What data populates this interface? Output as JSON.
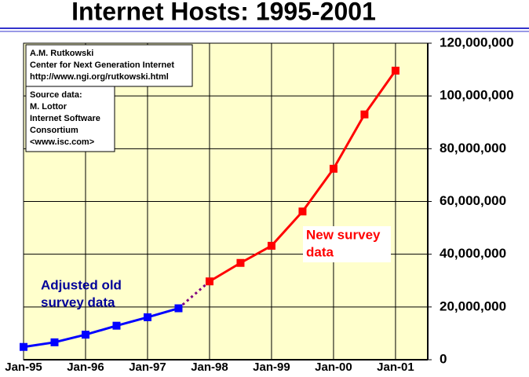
{
  "chart_data": {
    "type": "line",
    "title": "Internet Hosts: 1995-2001",
    "boxes": [
      [
        "A.M. Rutkowski",
        "Center for Next Generation Internet",
        "http://www.ngi.org/rutkowski.html"
      ],
      [
        "Source data:",
        "M. Lottor",
        "Internet Software",
        "Consortium",
        "<www.isc.com>"
      ]
    ],
    "annotations": [
      {
        "lines": [
          "Adjusted old",
          "survey data"
        ],
        "color": "#000099"
      },
      {
        "lines": [
          "New survey",
          "data"
        ],
        "color": "#ff0000"
      }
    ],
    "series": [
      {
        "color": "#0000ff",
        "line_color": "#0000ff",
        "x": [
          1995.0,
          1995.5,
          1996.0,
          1996.5,
          1997.0,
          1997.5
        ],
        "values": [
          4850000,
          6600000,
          9500000,
          12900000,
          16100000,
          19500000
        ]
      },
      {
        "color": "#ff0000",
        "line_color": "#ff0000",
        "x": [
          1998.0,
          1998.5,
          1999.0,
          1999.5,
          2000.0,
          2000.5,
          2001.0
        ],
        "values": [
          29700000,
          36700000,
          43200000,
          56200000,
          72400000,
          93000000,
          109600000
        ]
      }
    ],
    "connector_color": "#800080",
    "xlim": [
      1995,
      2001.52
    ],
    "xticks": [
      {
        "value": 1995,
        "label": "Jan-95"
      },
      {
        "value": 1996,
        "label": "Jan-96"
      },
      {
        "value": 1997,
        "label": "Jan-97"
      },
      {
        "value": 1998,
        "label": "Jan-98"
      },
      {
        "value": 1999,
        "label": "Jan-99"
      },
      {
        "value": 2000,
        "label": "Jan-00"
      },
      {
        "value": 2001,
        "label": "Jan-01"
      }
    ],
    "ylim": [
      0,
      120000000
    ],
    "yticks": [
      0,
      {
        "value": 20000000,
        "label": "20,000,000"
      },
      {
        "value": 40000000,
        "label": "40,000,000"
      },
      {
        "value": 60000000,
        "label": "60,000,000"
      },
      {
        "value": 80000000,
        "label": "80,000,000"
      },
      {
        "value": 100000000,
        "label": "100,000,000"
      },
      {
        "value": 120000000,
        "label": "120,000,000"
      }
    ],
    "plot_background": "#ffffcc",
    "grid": true
  }
}
